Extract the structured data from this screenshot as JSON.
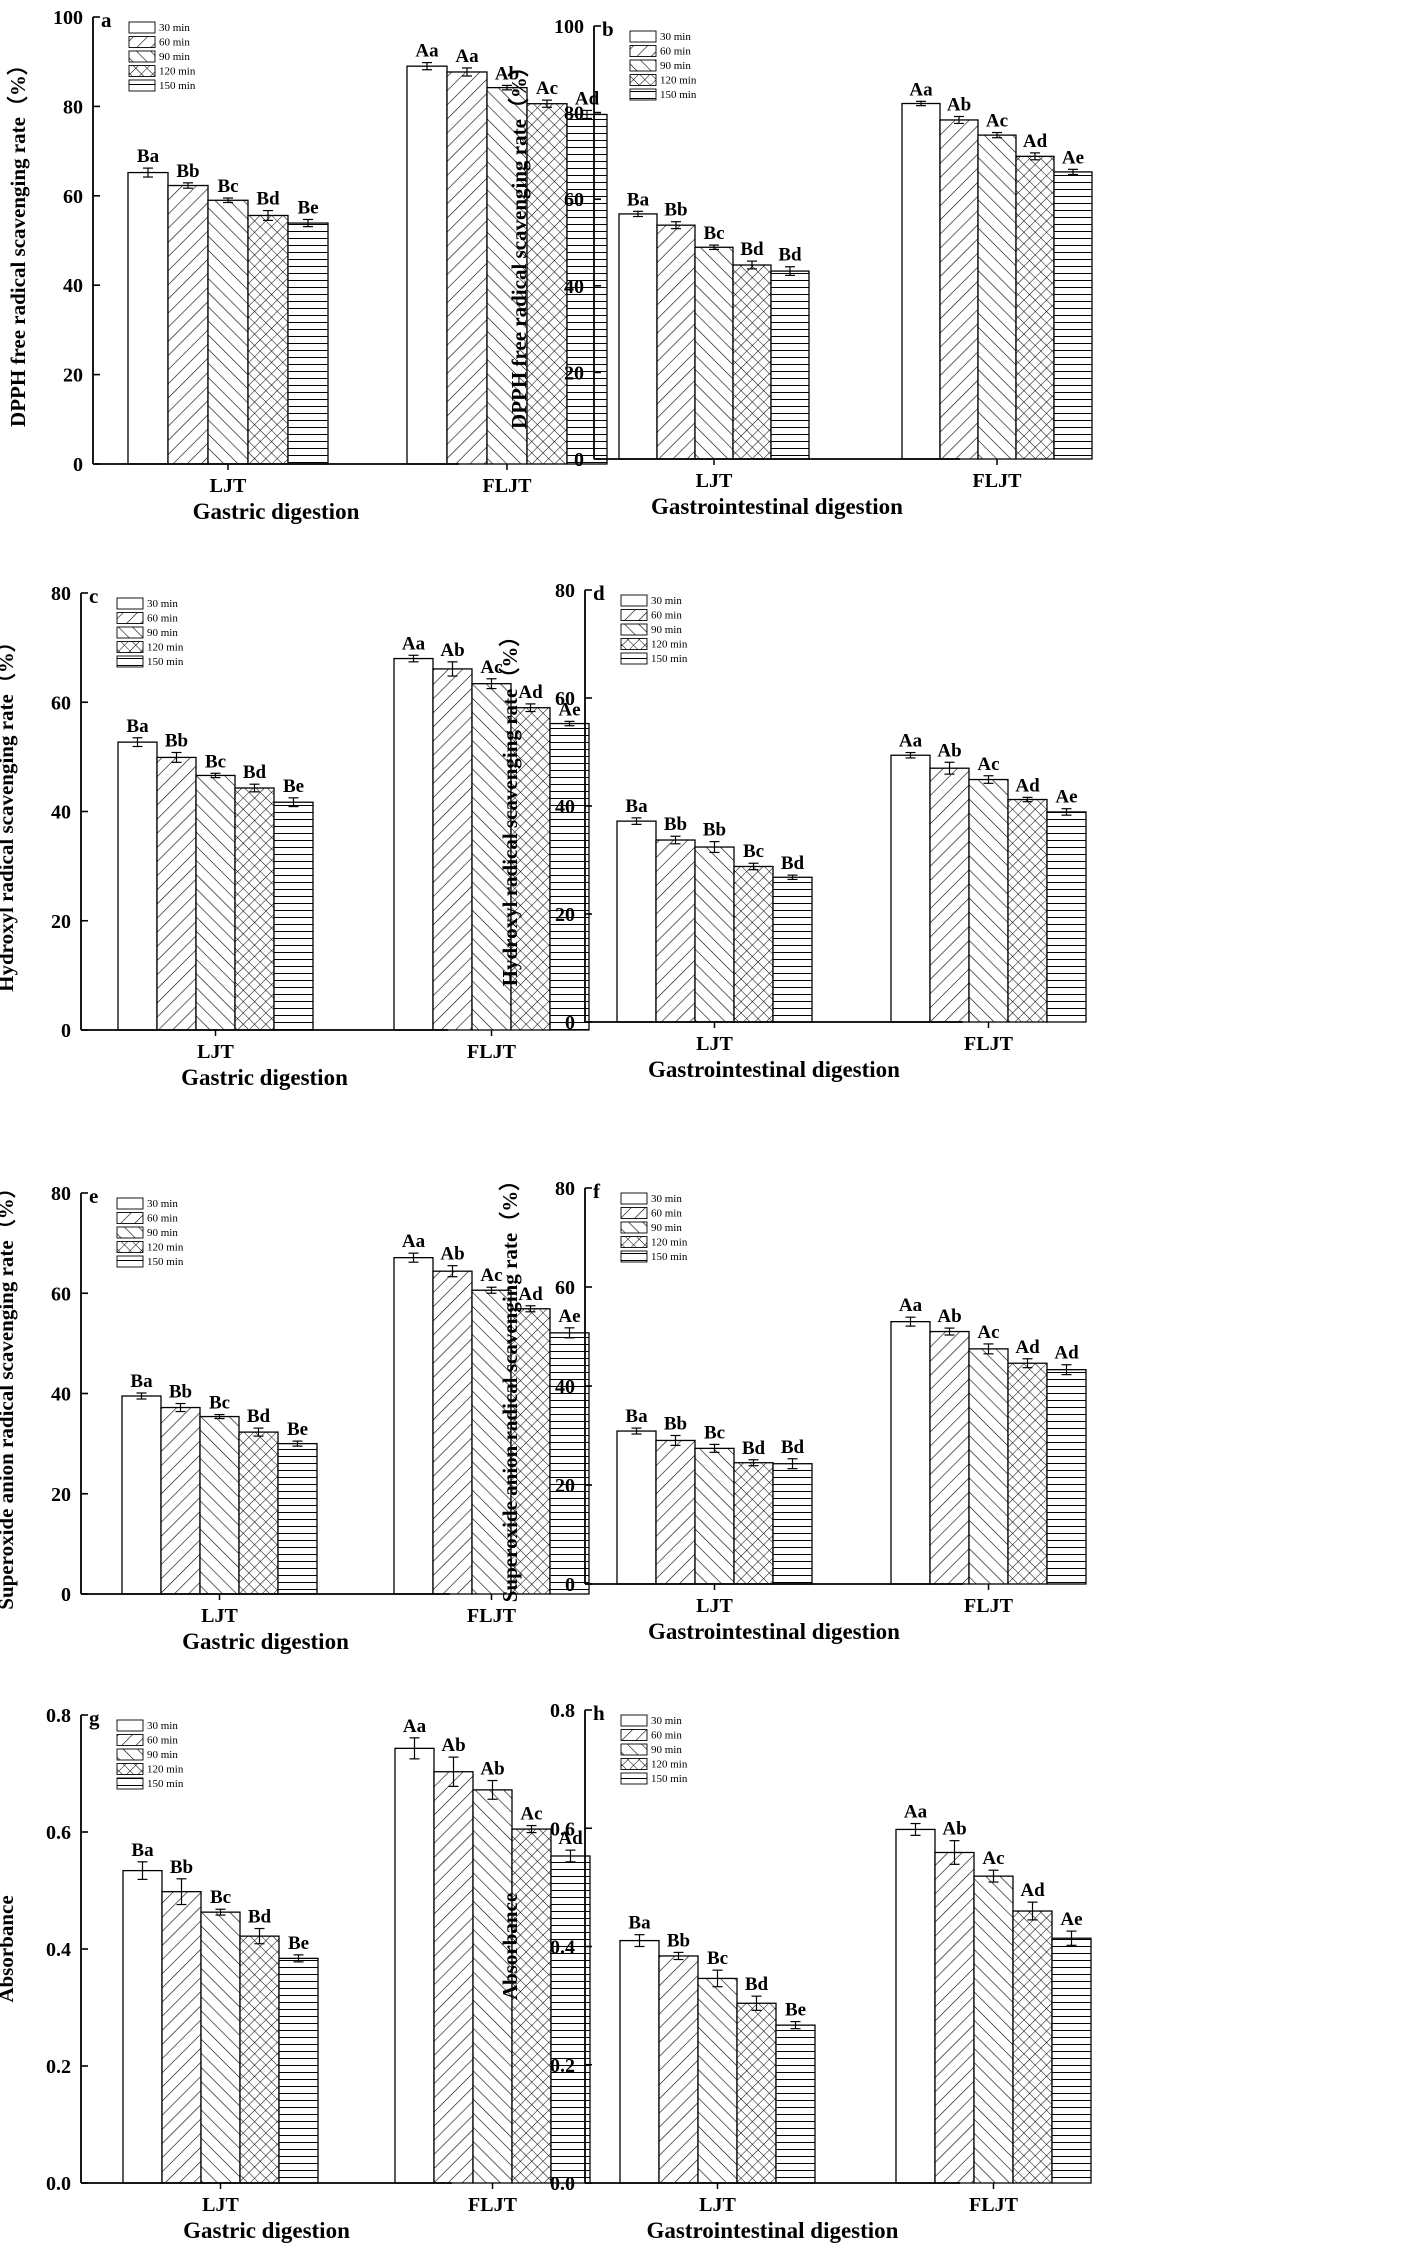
{
  "chart_data": [
    {
      "type": "bar",
      "panel": "a",
      "xlabel": "Gastric digestion",
      "ylabel": "DPPH free radical scavenging rate（%）",
      "categories": [
        "LJT",
        "FLJT"
      ],
      "legend": [
        "30 min",
        "60 min",
        "90 min",
        "120 min",
        "150 min"
      ],
      "ylim": [
        0,
        100
      ],
      "yticks": [
        "0",
        "20",
        "40",
        "60",
        "80",
        "100"
      ],
      "series": [
        {
          "name": "30 min",
          "values": [
            65.2,
            89.0
          ],
          "errors": [
            1.0,
            0.8
          ],
          "letters": [
            "Ba",
            "Aa"
          ]
        },
        {
          "name": "60 min",
          "values": [
            62.3,
            87.7
          ],
          "errors": [
            0.6,
            0.9
          ],
          "letters": [
            "Bb",
            "Aa"
          ]
        },
        {
          "name": "90 min",
          "values": [
            59.0,
            84.2
          ],
          "errors": [
            0.5,
            0.5
          ],
          "letters": [
            "Bc",
            "Ab"
          ]
        },
        {
          "name": "120 min",
          "values": [
            55.6,
            80.6
          ],
          "errors": [
            1.1,
            0.8
          ],
          "letters": [
            "Bd",
            "Ac"
          ]
        },
        {
          "name": "150 min",
          "values": [
            53.9,
            78.2
          ],
          "errors": [
            0.8,
            0.9
          ],
          "letters": [
            "Be",
            "Ad"
          ]
        }
      ]
    },
    {
      "type": "bar",
      "panel": "b",
      "xlabel": "Gastrointestinal digestion",
      "ylabel": "DPPH free radical scavenging rate（%）",
      "categories": [
        "LJT",
        "FLJT"
      ],
      "legend": [
        "30 min",
        "60 min",
        "90 min",
        "120 min",
        "150 min"
      ],
      "ylim": [
        0,
        100
      ],
      "yticks": [
        "0",
        "20",
        "40",
        "60",
        "80",
        "100"
      ],
      "series": [
        {
          "name": "30 min",
          "values": [
            56.6,
            82.1
          ],
          "errors": [
            0.6,
            0.5
          ],
          "letters": [
            "Ba",
            "Aa"
          ]
        },
        {
          "name": "60 min",
          "values": [
            54.0,
            78.3
          ],
          "errors": [
            0.8,
            0.8
          ],
          "letters": [
            "Bb",
            "Ab"
          ]
        },
        {
          "name": "90 min",
          "values": [
            48.9,
            74.8
          ],
          "errors": [
            0.5,
            0.6
          ],
          "letters": [
            "Bc",
            "Ac"
          ]
        },
        {
          "name": "120 min",
          "values": [
            44.8,
            69.9
          ],
          "errors": [
            0.9,
            0.8
          ],
          "letters": [
            "Bd",
            "Ad"
          ]
        },
        {
          "name": "150 min",
          "values": [
            43.4,
            66.3
          ],
          "errors": [
            1.0,
            0.6
          ],
          "letters": [
            "Bd",
            "Ae"
          ]
        }
      ]
    },
    {
      "type": "bar",
      "panel": "c",
      "xlabel": "Gastric digestion",
      "ylabel": "Hydroxyl radical scavenging rate（%）",
      "categories": [
        "LJT",
        "FLJT"
      ],
      "legend": [
        "30 min",
        "60 min",
        "90 min",
        "120 min",
        "150 min"
      ],
      "ylim": [
        0,
        80
      ],
      "yticks": [
        "0",
        "20",
        "40",
        "60",
        "80"
      ],
      "series": [
        {
          "name": "30 min",
          "values": [
            52.7,
            68.0
          ],
          "errors": [
            0.8,
            0.6
          ],
          "letters": [
            "Ba",
            "Aa"
          ]
        },
        {
          "name": "60 min",
          "values": [
            49.9,
            66.1
          ],
          "errors": [
            0.9,
            1.3
          ],
          "letters": [
            "Bb",
            "Ab"
          ]
        },
        {
          "name": "90 min",
          "values": [
            46.6,
            63.4
          ],
          "errors": [
            0.4,
            0.9
          ],
          "letters": [
            "Bc",
            "Ac"
          ]
        },
        {
          "name": "120 min",
          "values": [
            44.3,
            59.0
          ],
          "errors": [
            0.7,
            0.7
          ],
          "letters": [
            "Bd",
            "Ad"
          ]
        },
        {
          "name": "150 min",
          "values": [
            41.7,
            56.1
          ],
          "errors": [
            0.8,
            0.4
          ],
          "letters": [
            "Be",
            "Ae"
          ]
        }
      ]
    },
    {
      "type": "bar",
      "panel": "d",
      "xlabel": "Gastrointestinal digestion",
      "ylabel": "Hydroxyl radical scavenging rate（%）",
      "categories": [
        "LJT",
        "FLJT"
      ],
      "legend": [
        "30 min",
        "60 min",
        "90 min",
        "120 min",
        "150 min"
      ],
      "ylim": [
        0,
        80
      ],
      "yticks": [
        "0",
        "20",
        "40",
        "60",
        "80"
      ],
      "series": [
        {
          "name": "30 min",
          "values": [
            37.2,
            49.4
          ],
          "errors": [
            0.6,
            0.5
          ],
          "letters": [
            "Ba",
            "Aa"
          ]
        },
        {
          "name": "60 min",
          "values": [
            33.7,
            47.0
          ],
          "errors": [
            0.7,
            1.1
          ],
          "letters": [
            "Bb",
            "Ab"
          ]
        },
        {
          "name": "90 min",
          "values": [
            32.4,
            44.9
          ],
          "errors": [
            1.0,
            0.7
          ],
          "letters": [
            "Bb",
            "Ac"
          ]
        },
        {
          "name": "120 min",
          "values": [
            28.8,
            41.2
          ],
          "errors": [
            0.6,
            0.4
          ],
          "letters": [
            "Bc",
            "Ad"
          ]
        },
        {
          "name": "150 min",
          "values": [
            26.8,
            38.9
          ],
          "errors": [
            0.4,
            0.6
          ],
          "letters": [
            "Bd",
            "Ae"
          ]
        }
      ]
    },
    {
      "type": "bar",
      "panel": "e",
      "xlabel": "Gastric digestion",
      "ylabel": "Superoxide anion radical scavenging rate（%）",
      "categories": [
        "LJT",
        "FLJT"
      ],
      "legend": [
        "30 min",
        "60 min",
        "90 min",
        "120 min",
        "150 min"
      ],
      "ylim": [
        0,
        80
      ],
      "yticks": [
        "0",
        "20",
        "40",
        "60",
        "80"
      ],
      "series": [
        {
          "name": "30 min",
          "values": [
            39.5,
            67.1
          ],
          "errors": [
            0.6,
            0.9
          ],
          "letters": [
            "Ba",
            "Aa"
          ]
        },
        {
          "name": "60 min",
          "values": [
            37.2,
            64.4
          ],
          "errors": [
            0.8,
            1.1
          ],
          "letters": [
            "Bb",
            "Ab"
          ]
        },
        {
          "name": "90 min",
          "values": [
            35.4,
            60.6
          ],
          "errors": [
            0.4,
            0.6
          ],
          "letters": [
            "Bc",
            "Ac"
          ]
        },
        {
          "name": "120 min",
          "values": [
            32.3,
            56.9
          ],
          "errors": [
            0.8,
            0.6
          ],
          "letters": [
            "Bd",
            "Ad"
          ]
        },
        {
          "name": "150 min",
          "values": [
            30.0,
            52.1
          ],
          "errors": [
            0.5,
            1.0
          ],
          "letters": [
            "Be",
            "Ae"
          ]
        }
      ]
    },
    {
      "type": "bar",
      "panel": "f",
      "xlabel": "Gastrointestinal digestion",
      "ylabel": "Superoxide anion radical scavenging rate（%）",
      "categories": [
        "LJT",
        "FLJT"
      ],
      "legend": [
        "30 min",
        "60 min",
        "90 min",
        "120 min",
        "150 min"
      ],
      "ylim": [
        0,
        80
      ],
      "yticks": [
        "0",
        "20",
        "40",
        "60",
        "80"
      ],
      "series": [
        {
          "name": "30 min",
          "values": [
            30.9,
            53.0
          ],
          "errors": [
            0.6,
            0.9
          ],
          "letters": [
            "Ba",
            "Aa"
          ]
        },
        {
          "name": "60 min",
          "values": [
            29.0,
            51.0
          ],
          "errors": [
            1.0,
            0.7
          ],
          "letters": [
            "Bb",
            "Ab"
          ]
        },
        {
          "name": "90 min",
          "values": [
            27.4,
            47.5
          ],
          "errors": [
            0.8,
            1.0
          ],
          "letters": [
            "Bc",
            "Ac"
          ]
        },
        {
          "name": "120 min",
          "values": [
            24.5,
            44.6
          ],
          "errors": [
            0.6,
            0.9
          ],
          "letters": [
            "Bd",
            "Ad"
          ]
        },
        {
          "name": "150 min",
          "values": [
            24.3,
            43.3
          ],
          "errors": [
            1.0,
            1.0
          ],
          "letters": [
            "Bd",
            "Ad"
          ]
        }
      ]
    },
    {
      "type": "bar",
      "panel": "g",
      "xlabel": "Gastric digestion",
      "ylabel": "Absorbance",
      "categories": [
        "LJT",
        "FLJT"
      ],
      "legend": [
        "30 min",
        "60 min",
        "90 min",
        "120 min",
        "150 min"
      ],
      "ylim": [
        0,
        0.8
      ],
      "yticks": [
        "0.0",
        "0.2",
        "0.4",
        "0.6",
        "0.8"
      ],
      "series": [
        {
          "name": "30 min",
          "values": [
            0.534,
            0.743
          ],
          "errors": [
            0.015,
            0.018
          ],
          "letters": [
            "Ba",
            "Aa"
          ]
        },
        {
          "name": "60 min",
          "values": [
            0.498,
            0.703
          ],
          "errors": [
            0.022,
            0.025
          ],
          "letters": [
            "Bb",
            "Ab"
          ]
        },
        {
          "name": "90 min",
          "values": [
            0.463,
            0.672
          ],
          "errors": [
            0.005,
            0.016
          ],
          "letters": [
            "Bc",
            "Ab"
          ]
        },
        {
          "name": "120 min",
          "values": [
            0.422,
            0.605
          ],
          "errors": [
            0.013,
            0.006
          ],
          "letters": [
            "Bd",
            "Ac"
          ]
        },
        {
          "name": "150 min",
          "values": [
            0.384,
            0.559
          ],
          "errors": [
            0.006,
            0.01
          ],
          "letters": [
            "Be",
            "Ad"
          ]
        }
      ]
    },
    {
      "type": "bar",
      "panel": "h",
      "xlabel": "Gastrointestinal digestion",
      "ylabel": "Absorbance",
      "categories": [
        "LJT",
        "FLJT"
      ],
      "legend": [
        "30 min",
        "60 min",
        "90 min",
        "120 min",
        "150 min"
      ],
      "ylim": [
        0,
        0.8
      ],
      "yticks": [
        "0.0",
        "0.2",
        "0.4",
        "0.6",
        "0.8"
      ],
      "series": [
        {
          "name": "30 min",
          "values": [
            0.41,
            0.598
          ],
          "errors": [
            0.01,
            0.01
          ],
          "letters": [
            "Ba",
            "Aa"
          ]
        },
        {
          "name": "60 min",
          "values": [
            0.384,
            0.559
          ],
          "errors": [
            0.006,
            0.02
          ],
          "letters": [
            "Bb",
            "Ab"
          ]
        },
        {
          "name": "90 min",
          "values": [
            0.346,
            0.519
          ],
          "errors": [
            0.014,
            0.01
          ],
          "letters": [
            "Bc",
            "Ac"
          ]
        },
        {
          "name": "120 min",
          "values": [
            0.304,
            0.46
          ],
          "errors": [
            0.012,
            0.015
          ],
          "letters": [
            "Bd",
            "Ad"
          ]
        },
        {
          "name": "150 min",
          "values": [
            0.267,
            0.414
          ],
          "errors": [
            0.006,
            0.012
          ],
          "letters": [
            "Be",
            "Ae"
          ]
        }
      ]
    }
  ]
}
